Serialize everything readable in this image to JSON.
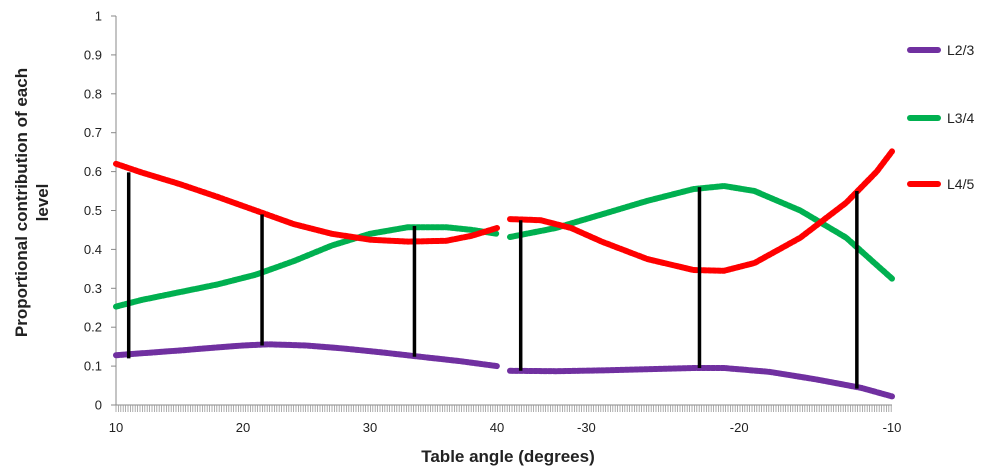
{
  "chart_data": {
    "type": "line",
    "xlabel": "Table angle (degrees)",
    "ylabel": "Proportional contribution of each level",
    "ylim": [
      0,
      1
    ],
    "yticks": [
      "0",
      "0.1",
      "0.2",
      "0.3",
      "0.4",
      "0.5",
      "0.6",
      "0.7",
      "0.8",
      "0.9",
      "1"
    ],
    "x_segments": [
      {
        "range": [
          10,
          40
        ],
        "tick_labels": [
          "10",
          "20",
          "30",
          "40"
        ]
      },
      {
        "range": [
          -35,
          -10
        ],
        "tick_labels": [
          "-30",
          "-20",
          "-10"
        ]
      }
    ],
    "grid": false,
    "legend_position": "right",
    "series": [
      {
        "name": "L2/3",
        "color": "#7030a0",
        "segments": [
          [
            [
              10,
              0.128
            ],
            [
              12,
              0.133
            ],
            [
              15,
              0.14
            ],
            [
              18,
              0.148
            ],
            [
              20,
              0.153
            ],
            [
              22,
              0.156
            ],
            [
              25,
              0.153
            ],
            [
              28,
              0.145
            ],
            [
              31,
              0.135
            ],
            [
              34,
              0.124
            ],
            [
              37,
              0.113
            ],
            [
              40,
              0.1
            ]
          ],
          [
            [
              -35,
              0.088
            ],
            [
              -32,
              0.087
            ],
            [
              -29,
              0.089
            ],
            [
              -26,
              0.092
            ],
            [
              -23,
              0.095
            ],
            [
              -21,
              0.095
            ],
            [
              -18,
              0.085
            ],
            [
              -15,
              0.066
            ],
            [
              -12,
              0.044
            ],
            [
              -10,
              0.022
            ]
          ]
        ]
      },
      {
        "name": "L3/4",
        "color": "#00b050",
        "segments": [
          [
            [
              10,
              0.253
            ],
            [
              12,
              0.27
            ],
            [
              15,
              0.29
            ],
            [
              18,
              0.31
            ],
            [
              21,
              0.335
            ],
            [
              24,
              0.37
            ],
            [
              27,
              0.41
            ],
            [
              30,
              0.44
            ],
            [
              33,
              0.457
            ],
            [
              36,
              0.457
            ],
            [
              38,
              0.45
            ],
            [
              40,
              0.44
            ]
          ],
          [
            [
              -35,
              0.432
            ],
            [
              -32,
              0.455
            ],
            [
              -29,
              0.49
            ],
            [
              -26,
              0.525
            ],
            [
              -23,
              0.555
            ],
            [
              -21,
              0.563
            ],
            [
              -19,
              0.55
            ],
            [
              -16,
              0.5
            ],
            [
              -13,
              0.43
            ],
            [
              -11,
              0.36
            ],
            [
              -10,
              0.325
            ]
          ]
        ]
      },
      {
        "name": "L4/5",
        "color": "#ff0000",
        "segments": [
          [
            [
              10,
              0.62
            ],
            [
              12,
              0.598
            ],
            [
              15,
              0.568
            ],
            [
              18,
              0.535
            ],
            [
              21,
              0.5
            ],
            [
              24,
              0.465
            ],
            [
              27,
              0.44
            ],
            [
              30,
              0.425
            ],
            [
              33,
              0.42
            ],
            [
              36,
              0.422
            ],
            [
              38,
              0.435
            ],
            [
              40,
              0.455
            ]
          ],
          [
            [
              -35,
              0.478
            ],
            [
              -33,
              0.475
            ],
            [
              -31,
              0.455
            ],
            [
              -29,
              0.42
            ],
            [
              -26,
              0.375
            ],
            [
              -23,
              0.347
            ],
            [
              -21,
              0.345
            ],
            [
              -19,
              0.365
            ],
            [
              -16,
              0.43
            ],
            [
              -13,
              0.52
            ],
            [
              -11,
              0.6
            ],
            [
              -10,
              0.652
            ]
          ]
        ]
      }
    ],
    "connectors": [
      {
        "segment": 0,
        "x": 11,
        "y_top": 0.598,
        "y_bottom": 0.12
      },
      {
        "segment": 0,
        "x": 21.5,
        "y_top": 0.49,
        "y_bottom": 0.153
      },
      {
        "segment": 0,
        "x": 33.5,
        "y_top": 0.46,
        "y_bottom": 0.124
      },
      {
        "segment": 1,
        "x": -34.3,
        "y_top": 0.475,
        "y_bottom": 0.088
      },
      {
        "segment": 1,
        "x": -22.6,
        "y_top": 0.56,
        "y_bottom": 0.095
      },
      {
        "segment": 1,
        "x": -12.3,
        "y_top": 0.55,
        "y_bottom": 0.042
      }
    ]
  }
}
